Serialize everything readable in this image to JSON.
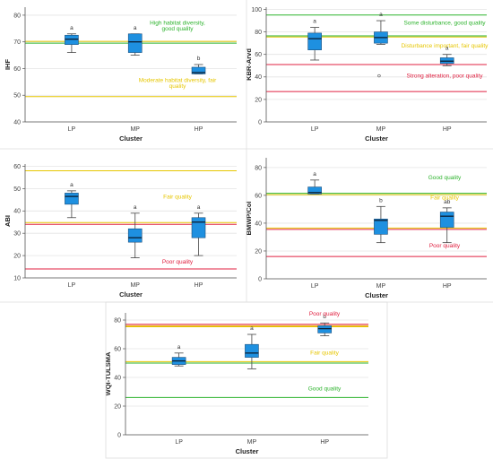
{
  "chart_data": [
    {
      "type": "box",
      "ylabel": "IHF",
      "xlabel": "Cluster",
      "ylim": [
        40,
        83
      ],
      "yticks": [
        40,
        50,
        60,
        70,
        80
      ],
      "categories": [
        "LP",
        "MP",
        "HP"
      ],
      "box_color": "#1e90e0",
      "boxes": [
        {
          "min": 66,
          "q1": 69,
          "median": 71,
          "q3": 72.5,
          "max": 73,
          "sig": "a"
        },
        {
          "min": 65,
          "q1": 66,
          "median": 70,
          "q3": 73,
          "max": 73,
          "sig": "a"
        },
        {
          "min": 58,
          "q1": 58,
          "median": 58.5,
          "q3": 60.5,
          "max": 61.5,
          "sig": "b"
        }
      ],
      "thresholds": [
        {
          "value": 69.5,
          "color": "#2db32d"
        },
        {
          "value": 70.2,
          "color": "#e6c600"
        },
        {
          "value": 49.5,
          "color": "#e6c600"
        }
      ],
      "annotations": [
        {
          "text": "High habitat diversity,",
          "y": 76.5,
          "color": "#2db32d"
        },
        {
          "text": "good quality",
          "y": 74.2,
          "color": "#2db32d"
        },
        {
          "text": "Moderate habitat diversity, fair",
          "y": 55.0,
          "color": "#e6c600"
        },
        {
          "text": "quality",
          "y": 52.8,
          "color": "#e6c600"
        }
      ]
    },
    {
      "type": "box",
      "ylabel": "KBR-Arvd",
      "xlabel": "Cluster",
      "ylim": [
        0,
        102
      ],
      "yticks": [
        0,
        20,
        40,
        60,
        80,
        100
      ],
      "categories": [
        "LP",
        "MP",
        "HP"
      ],
      "box_color": "#1e90e0",
      "boxes": [
        {
          "min": 55,
          "q1": 64,
          "median": 74,
          "q3": 79,
          "max": 84,
          "sig": "a"
        },
        {
          "min": 69,
          "q1": 70,
          "median": 75,
          "q3": 80,
          "max": 90,
          "sig": "a",
          "outliers": [
            41
          ]
        },
        {
          "min": 50,
          "q1": 52,
          "median": 54,
          "q3": 57,
          "max": 60,
          "sig": "a"
        }
      ],
      "thresholds": [
        {
          "value": 95,
          "color": "#2db32d"
        },
        {
          "value": 76.5,
          "color": "#2db32d"
        },
        {
          "value": 75.5,
          "color": "#e6c600"
        },
        {
          "value": 51,
          "color": "#e02040"
        },
        {
          "value": 27,
          "color": "#e02040"
        }
      ],
      "annotations": [
        {
          "text": "Some disturbance, good quality",
          "y": 86.5,
          "color": "#2db32d"
        },
        {
          "text": "Disturbance important, fair quality",
          "y": 66.0,
          "color": "#e6c600"
        },
        {
          "text": "Strong alteration, poor quality",
          "y": 39.5,
          "color": "#e02040"
        }
      ]
    },
    {
      "type": "box",
      "ylabel": "ABI",
      "xlabel": "Cluster",
      "ylim": [
        10,
        61
      ],
      "yticks": [
        10,
        20,
        30,
        40,
        50,
        60
      ],
      "categories": [
        "LP",
        "MP",
        "HP"
      ],
      "box_color": "#1e90e0",
      "boxes": [
        {
          "min": 37,
          "q1": 43,
          "median": 46.5,
          "q3": 48,
          "max": 49,
          "sig": "a"
        },
        {
          "min": 19,
          "q1": 26,
          "median": 28,
          "q3": 32,
          "max": 39,
          "sig": "a"
        },
        {
          "min": 20,
          "q1": 28,
          "median": 35,
          "q3": 37,
          "max": 39,
          "sig": "a"
        }
      ],
      "thresholds": [
        {
          "value": 58,
          "color": "#e6c600"
        },
        {
          "value": 34.8,
          "color": "#e6c600"
        },
        {
          "value": 34.0,
          "color": "#e02040"
        },
        {
          "value": 14,
          "color": "#e02040"
        }
      ],
      "annotations": [
        {
          "text": "Fair quality",
          "y": 45.5,
          "color": "#e6c600"
        },
        {
          "text": "Poor quality",
          "y": 16.5,
          "color": "#e02040"
        }
      ]
    },
    {
      "type": "box",
      "ylabel": "BMWP/Col",
      "xlabel": "Cluster",
      "ylim": [
        0,
        87
      ],
      "yticks": [
        0,
        20,
        40,
        60,
        80
      ],
      "categories": [
        "LP",
        "MP",
        "HP"
      ],
      "box_color": "#1e90e0",
      "boxes": [
        {
          "min": 61,
          "q1": 61,
          "median": 62,
          "q3": 66,
          "max": 71,
          "sig": "a"
        },
        {
          "min": 26,
          "q1": 32,
          "median": 42,
          "q3": 43,
          "max": 52,
          "sig": "b"
        },
        {
          "min": 26,
          "q1": 37,
          "median": 45,
          "q3": 48,
          "max": 51,
          "sig": "ab"
        }
      ],
      "thresholds": [
        {
          "value": 61.5,
          "color": "#2db32d"
        },
        {
          "value": 60.5,
          "color": "#e6c600"
        },
        {
          "value": 36.5,
          "color": "#e6c600"
        },
        {
          "value": 35.5,
          "color": "#e02040"
        },
        {
          "value": 16,
          "color": "#e02040"
        }
      ],
      "annotations": [
        {
          "text": "Good quality",
          "y": 71.5,
          "color": "#2db32d"
        },
        {
          "text": "Fair quality",
          "y": 57.0,
          "color": "#e6c600"
        },
        {
          "text": "Poor quality",
          "y": 22.5,
          "color": "#e02040"
        }
      ]
    },
    {
      "type": "box",
      "ylabel": "WQI-TULSMA",
      "xlabel": "Cluster",
      "ylim": [
        0,
        85
      ],
      "yticks": [
        0,
        20,
        40,
        60,
        80
      ],
      "categories": [
        "LP",
        "MP",
        "HP"
      ],
      "box_color": "#1e90e0",
      "boxes": [
        {
          "min": 48,
          "q1": 49,
          "median": 51.5,
          "q3": 54,
          "max": 57,
          "sig": "a"
        },
        {
          "min": 46,
          "q1": 54,
          "median": 57,
          "q3": 63,
          "max": 70,
          "sig": "a"
        },
        {
          "min": 69,
          "q1": 71,
          "median": 74,
          "q3": 76,
          "max": 78,
          "sig": "b"
        }
      ],
      "thresholds": [
        {
          "value": 77,
          "color": "#e02040"
        },
        {
          "value": 76,
          "color": "#e6a000"
        },
        {
          "value": 75.3,
          "color": "#e6c600"
        },
        {
          "value": 51,
          "color": "#e6c600"
        },
        {
          "value": 50,
          "color": "#2db32d"
        },
        {
          "value": 26,
          "color": "#2db32d"
        }
      ],
      "annotations": [
        {
          "text": "Poor quality",
          "y": 83.0,
          "color": "#e02040"
        },
        {
          "text": "Fair quality",
          "y": 56.0,
          "color": "#e6c600"
        },
        {
          "text": "Good quality",
          "y": 31.0,
          "color": "#2db32d"
        }
      ]
    }
  ]
}
